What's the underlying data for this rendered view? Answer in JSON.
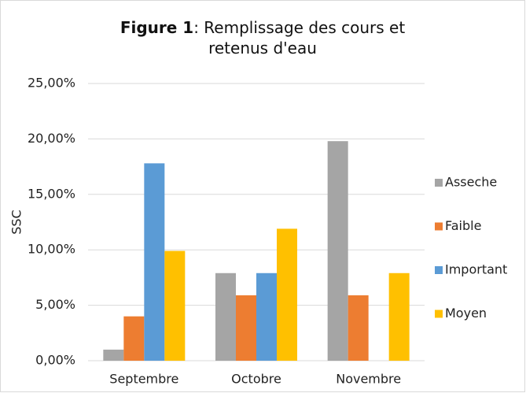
{
  "chart_data": {
    "type": "bar",
    "title": {
      "label": "Figure 1",
      "text": ": Remplissage des cours et retenus d'eau"
    },
    "y_label": "SSC",
    "categories": [
      "Septembre",
      "Octobre",
      "Novembre"
    ],
    "series": [
      {
        "name": "Asseche",
        "color": "#a5a5a5",
        "values": [
          1,
          7.9,
          19.8
        ]
      },
      {
        "name": "Faible",
        "color": "#ed7d31",
        "values": [
          4,
          5.9,
          5.9
        ]
      },
      {
        "name": "Important",
        "color": "#5b9bd5",
        "values": [
          17.8,
          7.9,
          0
        ]
      },
      {
        "name": "Moyen",
        "color": "#ffc000",
        "values": [
          9.9,
          11.9,
          7.9
        ]
      }
    ],
    "ylim": [
      0,
      25
    ],
    "yticks": [
      {
        "value": 0,
        "label": "0,00%"
      },
      {
        "value": 5,
        "label": "5,00%"
      },
      {
        "value": 10,
        "label": "10,00%"
      },
      {
        "value": 15,
        "label": "15,00%"
      },
      {
        "value": 20,
        "label": "20,00%"
      },
      {
        "value": 25,
        "label": "25,00%"
      }
    ],
    "grid": true,
    "legend": "right"
  }
}
